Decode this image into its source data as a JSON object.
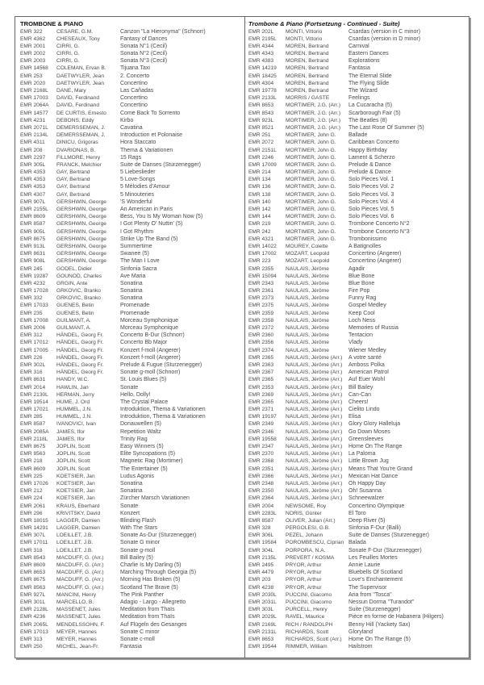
{
  "left": {
    "heading": "TROMBONE & PIANO",
    "rows": [
      [
        "EMR 322",
        "CESARE, G.M.",
        "Canzon \"La Hieronyma\" (Schnorr)"
      ],
      [
        "EMR 4362",
        "CHESEAUX, Tony",
        "Fantasy of Dances"
      ],
      [
        "EMR 2001",
        "CIRRI, G.",
        "Sonata N°1 (Cecil)"
      ],
      [
        "EMR 2002",
        "CIRRI, G.",
        "Sonata N°2 (Cecil)"
      ],
      [
        "EMR 2003",
        "CIRRI, G.",
        "Sonata N°3 (Cecil)"
      ],
      [
        "EMR 14568",
        "COLEMAN, Ervan B.",
        "Tijuana Taxi"
      ],
      [
        "EMR 253",
        "DAETWYLER, Jean",
        "2. Concerto"
      ],
      [
        "EMR 2020",
        "DAETWYLER, Jean",
        "Concertino"
      ],
      [
        "EMR 2168L",
        "DANE, Mary",
        "Las Cañadas"
      ],
      [
        "EMR 17003",
        "DAVID, Ferdinand",
        "Concertino"
      ],
      [
        "EMR 2064A",
        "DAVID, Ferdinand",
        "Concertino"
      ],
      [
        "EMR 14577",
        "DE CURTIS, Ernesto",
        "Come Back To Sorrento"
      ],
      [
        "EMR 4231",
        "DEBONS, Eddy",
        "Kirbo"
      ],
      [
        "EMR 2071L",
        "DEMERSSEMAN, J.",
        "Cavatina"
      ],
      [
        "EMR 2134L",
        "DEMERSSEMAN, J.",
        "Introduction et Polonaise"
      ],
      [
        "EMR 4311",
        "DINICU, Grigoras",
        "Hora Staccato"
      ],
      [
        "EMR 208",
        "DVARIONAS, B.",
        "Thema & Variationen"
      ],
      [
        "EMR 2297",
        "FILLMORE, Henry",
        "15 Rags"
      ],
      [
        "EMR 305L",
        "FRANCK, Melchior",
        "Suite de Danses (Sturzenegger)"
      ],
      [
        "EMR 4353",
        "GAY, Bertrand",
        "5 Liebeslieder"
      ],
      [
        "EMR 4353",
        "GAY, Bertrand",
        "5 Love-Songs"
      ],
      [
        "EMR 4353",
        "GAY, Bertrand",
        "5 Mélodies d'Amour"
      ],
      [
        "EMR 4307",
        "GAY, Bertrand",
        "5 Minouteries"
      ],
      [
        "EMR 907L",
        "GERSHWIN, George",
        "'S Wonderful"
      ],
      [
        "EMR 2155L",
        "GERSHWIN, George",
        "An American in Paris"
      ],
      [
        "EMR 8609",
        "GERSHWIN, George",
        "Bess, You Is My Woman Now (5)"
      ],
      [
        "EMR 8587",
        "GERSHWIN, George",
        "I Got Plenty O' Nuttin' (5)"
      ],
      [
        "EMR 905L",
        "GERSHWIN, George",
        "I Got Rhythm"
      ],
      [
        "EMR 8675",
        "GERSHWIN, George",
        "Strike Up The Band (5)"
      ],
      [
        "EMR 913L",
        "GERSHWIN, George",
        "Summertime"
      ],
      [
        "EMR 8631",
        "GERSHWIN, George",
        "Swanee (5)"
      ],
      [
        "EMR 908L",
        "GERSHWIN, George",
        "The Man I Love"
      ],
      [
        "EMR 245",
        "GODEL, Didier",
        "Sinfonia Sacra"
      ],
      [
        "EMR 19287",
        "GOUNOD, Charles",
        "Ave Maria"
      ],
      [
        "EMR 4232",
        "GRGIN, Ante",
        "Sonatina"
      ],
      [
        "EMR 17028",
        "GRKOVIC, Branko",
        "Sonatina"
      ],
      [
        "EMR 332",
        "GRKOVIC, Branko",
        "Sonatina"
      ],
      [
        "EMR 17033",
        "GUENES, Betin",
        "Promenade"
      ],
      [
        "EMR 235",
        "GUENES, Betin",
        "Promenade"
      ],
      [
        "EMR 17008",
        "GUILMANT, A.",
        "Morceau Symphonique"
      ],
      [
        "EMR 2006",
        "GUILMANT, A.",
        "Morceau Symphonique"
      ],
      [
        "EMR 312",
        "HÄNDEL, Georg Fr.",
        "Concerto B-Dur (Schnorr)"
      ],
      [
        "EMR 17012",
        "HÄNDEL, Georg Fr.",
        "Concerto Bb Major"
      ],
      [
        "EMR 17005",
        "HÄNDEL, Georg Fr.",
        "Konzert f-moll (Angerer)"
      ],
      [
        "EMR 226",
        "HÄNDEL, Georg Fr.",
        "Konzert f-moll (Angerer)"
      ],
      [
        "EMR 302L",
        "HÄNDEL, Georg Fr.",
        "Prelude & Fugue (Sturzenegger)"
      ],
      [
        "EMR 316",
        "HÄNDEL, Georg Fr.",
        "Sonate g-moll (Schnorr)"
      ],
      [
        "EMR 8631",
        "HANDY, W.C.",
        "St. Louis Blues (5)"
      ],
      [
        "EMR 2014",
        "HAWLIN, Jan",
        "Sonate"
      ],
      [
        "EMR 2130L",
        "HERMAN, Jerry",
        "Hello, Dolly!"
      ],
      [
        "EMR 19514",
        "HUME, J. Ord",
        "The Crystal Palace"
      ],
      [
        "EMR 17021",
        "HUMMEL, J.N.",
        "Introduktion, Thema & Variationen"
      ],
      [
        "EMR 285",
        "HUMMEL, J.N.",
        "Introduktion, Thema & Variationen"
      ],
      [
        "EMR 8587",
        "IVANOVICI, Ivan",
        "Donauwellen (5)"
      ],
      [
        "EMR 2085A",
        "JAMES, Ifor",
        "Repetition Waltz"
      ],
      [
        "EMR 2118L",
        "JAMES, Ifor",
        "Trinity Rag"
      ],
      [
        "EMR 8675",
        "JOPLIN, Scott",
        "Easy Winners (5)"
      ],
      [
        "EMR 8563",
        "JOPLIN, Scott",
        "Elite Syncopations (5)"
      ],
      [
        "EMR 218",
        "JOPLIN, Scott",
        "Magnetic Rag (Mortimer)"
      ],
      [
        "EMR 8609",
        "JOPLIN, Scott",
        "The Entertainer (5)"
      ],
      [
        "EMR 225",
        "KOETSIER, Jan",
        "Ludus Agonis"
      ],
      [
        "EMR 17026",
        "KOETSIER, Jan",
        "Sonatina"
      ],
      [
        "EMR 212",
        "KOETSIER, Jan",
        "Sonatina"
      ],
      [
        "EMR 224",
        "KOETSIER, Jan",
        "Zürcher Marsch Variationen"
      ],
      [
        "EMR 2061",
        "KRAUS, Eberhard",
        "Sonate"
      ],
      [
        "EMR 296",
        "KRIVITSKY, David",
        "Konzert"
      ],
      [
        "EMR 18015",
        "LAGGER, Damien",
        "Blinding Flash"
      ],
      [
        "EMR 14291",
        "LAGGER, Damien",
        "With The Stars"
      ],
      [
        "EMR 307L",
        "LOEILLET, J.B.",
        "Sonate As-Dur (Sturzenegger)"
      ],
      [
        "EMR 17011",
        "LOEILLET, J.B.",
        "Sonate G minor"
      ],
      [
        "EMR 318",
        "LOEILLET, J.B.",
        "Sonate g-moll"
      ],
      [
        "EMR 8543",
        "MACDUFF, G. (Arr.)",
        "Bill Bailey (5)"
      ],
      [
        "EMR 8609",
        "MACDUFF, G. (Arr.)",
        "Charlie Is My Darling (5)"
      ],
      [
        "EMR 8653",
        "MACDUFF, G. (Arr.)",
        "Marching Through Georgia (5)"
      ],
      [
        "EMR 8675",
        "MACDUFF, G. (Arr.)",
        "Morning Has Broken (5)"
      ],
      [
        "EMR 8563",
        "MACDUFF, G. (Arr.)",
        "Scotland The Brave (5)"
      ],
      [
        "EMR 927L",
        "MANCINI, Henry",
        "The Pink Panther"
      ],
      [
        "EMR 301L",
        "MARCELLO, B.",
        "Adagio - Largo - Allegretto"
      ],
      [
        "EMR 2128L",
        "MASSENET, Jules",
        "Meditation from Thaïs"
      ],
      [
        "EMR 4236",
        "MASSENET, Jules",
        "Meditation from Thaïs"
      ],
      [
        "EMR 2065L",
        "MENDELSSOHN, F.",
        "Auf Flügeln des Gesanges"
      ],
      [
        "EMR 17013",
        "MEYER, Hannes",
        "Sonate C minor"
      ],
      [
        "EMR 313",
        "MEYER, Hannes",
        "Sonate c-moll"
      ],
      [
        "EMR 250",
        "MICHEL, Jean-Fr.",
        "Fantasia"
      ]
    ]
  },
  "right": {
    "heading": "Trombone & Piano (Fortsetzung - Continued - Suite)",
    "rows": [
      [
        "EMR 202L",
        "MONTI, Vittorio",
        "Csardas (version in C minor)"
      ],
      [
        "EMR 2195L",
        "MONTI, Vittorio",
        "Csardas (version in D minor)"
      ],
      [
        "EMR 4344",
        "MOREN, Bertrand",
        "Carnival"
      ],
      [
        "EMR 4343",
        "MOREN, Bertrand",
        "Eastern Dances"
      ],
      [
        "EMR 4383",
        "MOREN, Bertrand",
        "Explorations"
      ],
      [
        "EMR 14219",
        "MOREN, Bertrand",
        "Fantasia"
      ],
      [
        "EMR 18425",
        "MOREN, Bertrand",
        "The Eternal Slide"
      ],
      [
        "EMR 4304",
        "MOREN, Bertrand",
        "The Flying Slide"
      ],
      [
        "EMR 19778",
        "MOREN, Bertrand",
        "The Wizard"
      ],
      [
        "EMR 2133L",
        "MORRIS / GASTE",
        "Feelings"
      ],
      [
        "EMR 8653",
        "MORTIMER, J.G. (Arr.)",
        "La Cucaracha (5)"
      ],
      [
        "EMR 8543",
        "MORTIMER, J.G. (Arr.)",
        "Scarborough Fair (5)"
      ],
      [
        "EMR 923L",
        "MORTIMER, J.G. (Arr.)",
        "The Beatles (8)"
      ],
      [
        "EMR 8521",
        "MORTIMER, J.G. (Arr.)",
        "The Last Rose Of Summer (5)"
      ],
      [
        "EMR 251",
        "MORTIMER, John G.",
        "Ballade"
      ],
      [
        "EMR 2072",
        "MORTIMER, John G.",
        "Caribbean Concerto"
      ],
      [
        "EMR 2151L",
        "MORTIMER, John G.",
        "Happy Birthday"
      ],
      [
        "EMR 2246",
        "MORTIMER, John G.",
        "Lament & Scherzo"
      ],
      [
        "EMR 17009",
        "MORTIMER, John G.",
        "Prelude & Dance"
      ],
      [
        "EMR 214",
        "MORTIMER, John G.",
        "Prelude & Dance"
      ],
      [
        "EMR 134",
        "MORTIMER, John G.",
        "Solo Pieces Vol. 1"
      ],
      [
        "EMR 136",
        "MORTIMER, John G.",
        "Solo Pieces Vol. 2"
      ],
      [
        "EMR 138",
        "MORTIMER, John G.",
        "Solo Pieces Vol. 3"
      ],
      [
        "EMR 140",
        "MORTIMER, John G.",
        "Solo Pieces Vol. 4"
      ],
      [
        "EMR 142",
        "MORTIMER, John G.",
        "Solo Pieces Vol. 5"
      ],
      [
        "EMR 144",
        "MORTIMER, John G.",
        "Solo Pieces Vol. 6"
      ],
      [
        "EMR 219",
        "MORTIMER, John G.",
        "Trombone Concerto N°2"
      ],
      [
        "EMR 242",
        "MORTIMER, John G.",
        "Trombone Concerto N°3"
      ],
      [
        "EMR 4321",
        "MORTIMER, John G.",
        "Trombonissimo"
      ],
      [
        "EMR 14022",
        "MOUREY, Colette",
        "A Batignolles"
      ],
      [
        "EMR 17002",
        "MOZART, Leopold",
        "Concertino (Angerer)"
      ],
      [
        "EMR 223",
        "MOZART, Leopold",
        "Concertino (Angerer)"
      ],
      [
        "EMR 2355",
        "NAULAIS, Jérôme",
        "Agadir"
      ],
      [
        "EMR 15094",
        "NAULAIS, Jérôme",
        "Blue Bone"
      ],
      [
        "EMR 2343",
        "NAULAIS, Jérôme",
        "Blue Bone"
      ],
      [
        "EMR 2361",
        "NAULAIS, Jérôme",
        "Fire Pop"
      ],
      [
        "EMR 2373",
        "NAULAIS, Jérôme",
        "Funny Rag"
      ],
      [
        "EMR 2375",
        "NAULAIS, Jérôme",
        "Gospel Medley"
      ],
      [
        "EMR 2359",
        "NAULAIS, Jérôme",
        "Keep Cool"
      ],
      [
        "EMR 2358",
        "NAULAIS, Jérôme",
        "Loch Ness"
      ],
      [
        "EMR 2372",
        "NAULAIS, Jérôme",
        "Memories of Russia"
      ],
      [
        "EMR 2360",
        "NAULAIS, Jérôme",
        "Tentacion"
      ],
      [
        "EMR 2356",
        "NAULAIS, Jérôme",
        "Vlady"
      ],
      [
        "EMR 2374",
        "NAULAIS, Jérôme",
        "Wiener Medley"
      ],
      [
        "EMR 2365",
        "NAULAIS, Jérôme (Arr.)",
        "A votre santé"
      ],
      [
        "EMR 2363",
        "NAULAIS, Jérôme (Arr.)",
        "Amboss Polka"
      ],
      [
        "EMR 2367",
        "NAULAIS, Jérôme (Arr.)",
        "American Patrol"
      ],
      [
        "EMR 2365",
        "NAULAIS, Jérôme (Arr.)",
        "Auf Euer Wohl"
      ],
      [
        "EMR 2353",
        "NAULAIS, Jérôme (Arr.)",
        "Bill Bailey"
      ],
      [
        "EMR 2369",
        "NAULAIS, Jérôme (Arr.)",
        "Can-Can"
      ],
      [
        "EMR 2365",
        "NAULAIS, Jérôme (Arr.)",
        "Cheers!"
      ],
      [
        "EMR 2371",
        "NAULAIS, Jérôme (Arr.)",
        "Cielito Lindo"
      ],
      [
        "EMR 19197",
        "NAULAIS, Jérôme (Arr.)",
        "Elisa"
      ],
      [
        "EMR 2349",
        "NAULAIS, Jérôme (Arr.)",
        "Glory Glory Halleluja"
      ],
      [
        "EMR 2346",
        "NAULAIS, Jérôme (Arr.)",
        "Go Down Moses"
      ],
      [
        "EMR 19558",
        "NAULAIS, Jérôme (Arr.)",
        "Greensleeves"
      ],
      [
        "EMR 2347",
        "NAULAIS, Jérôme (Arr.)",
        "Home On The Range"
      ],
      [
        "EMR 2370",
        "NAULAIS, Jérôme (Arr.)",
        "La Paloma"
      ],
      [
        "EMR 2368",
        "NAULAIS, Jérôme (Arr.)",
        "Little Brown Jug"
      ],
      [
        "EMR 2351",
        "NAULAIS, Jérôme (Arr.)",
        "Means That You're Grand"
      ],
      [
        "EMR 2366",
        "NAULAIS, Jérôme (Arr.)",
        "Mexican Hat Dance"
      ],
      [
        "EMR 2348",
        "NAULAIS, Jérôme (Arr.)",
        "Oh Happy Day"
      ],
      [
        "EMR 2350",
        "NAULAIS, Jérôme (Arr.)",
        "Oh! Susanna"
      ],
      [
        "EMR 2364",
        "NAULAIS, Jérôme (Arr.)",
        "Schneewalzer"
      ],
      [
        "EMR 2004",
        "NEWSOME, Roy",
        "Concertino Olympique"
      ],
      [
        "EMR 2283L",
        "NORIS, Günter",
        "El Toro"
      ],
      [
        "EMR 8587",
        "OLIVER, Julian (Arr.)",
        "Deep River (5)"
      ],
      [
        "EMR 328",
        "PERGOLESI, G.B.",
        "Sinfonia F-Dur (Balli)"
      ],
      [
        "EMR 306L",
        "PEZEL, Johann",
        "Suite de Danses (Sturzenegger)"
      ],
      [
        "EMR 19584",
        "POROMBESCU, Ciprian",
        "Balada"
      ],
      [
        "EMR 304L",
        "PORPORA, N.A.",
        "Sonate F-Dur (Sturzenegger)"
      ],
      [
        "EMR 2135L",
        "PREVERT / KOSMA",
        "Les Feuilles Mortes"
      ],
      [
        "EMR 2495",
        "PRYOR, Arthur",
        "Annie Laurie"
      ],
      [
        "EMR 4479",
        "PRYOR, Arthur",
        "Bluebells Of Scotland"
      ],
      [
        "EMR 203",
        "PRYOR, Arthur",
        "Love's Enchantement"
      ],
      [
        "EMR 4238",
        "PRYOR, Arthur",
        "The Supervisor"
      ],
      [
        "EMR 2030L",
        "PUCCINI, Giacomo",
        "Aria from \"Tosca\""
      ],
      [
        "EMR 2031L",
        "PUCCINI, Giacomo",
        "Nessun Dorma \"Turandot\""
      ],
      [
        "EMR 303L",
        "PURCELL, Henry",
        "Suite (Sturzenegger)"
      ],
      [
        "EMR 2029L",
        "RAVEL, Maurice",
        "Pièce en forme de Habanera (Hilgers)"
      ],
      [
        "EMR 2169L",
        "RICH / RANDOLPH",
        "Benny Hill (Yackety Sax)"
      ],
      [
        "EMR 2131L",
        "RICHARDS, Scott",
        "Gloryland"
      ],
      [
        "EMR 8653",
        "RICHARDS, Scott (Arr.)",
        "Home On The Range (5)"
      ],
      [
        "EMR 19544",
        "RIMMER, William",
        "Hailstrom"
      ]
    ]
  }
}
